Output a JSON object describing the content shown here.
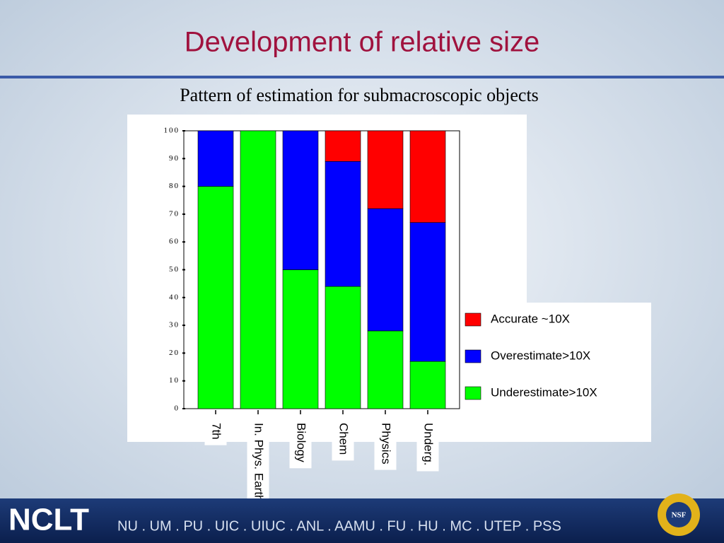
{
  "header": {
    "title": "Development of relative size",
    "subtitle": "Pattern of estimation for submacroscopic objects"
  },
  "chart_data": {
    "type": "stacked_bar",
    "categories": [
      "7th",
      "In. Phys. Earth",
      "Biology",
      "Chem",
      "Physics",
      "Underg."
    ],
    "series": [
      {
        "name": "Accurate ~10X",
        "color": "#ff0000",
        "values": [
          0,
          0,
          0,
          11,
          28,
          33
        ]
      },
      {
        "name": "Overestimate>10X",
        "color": "#0000ff",
        "values": [
          20,
          0,
          50,
          45,
          44,
          50
        ]
      },
      {
        "name": "Underestimate>10X",
        "color": "#00ff00",
        "values": [
          80,
          100,
          50,
          44,
          28,
          17
        ]
      }
    ],
    "ylim": [
      0,
      100
    ],
    "yticks": [
      0,
      10,
      20,
      30,
      40,
      50,
      60,
      70,
      80,
      90,
      100
    ]
  },
  "footer": {
    "logo": "NCLT",
    "partners": "NU . UM . PU . UIC . UIUC . ANL . AAMU . FU . HU . MC . UTEP . PSS",
    "badge": "NSF"
  }
}
